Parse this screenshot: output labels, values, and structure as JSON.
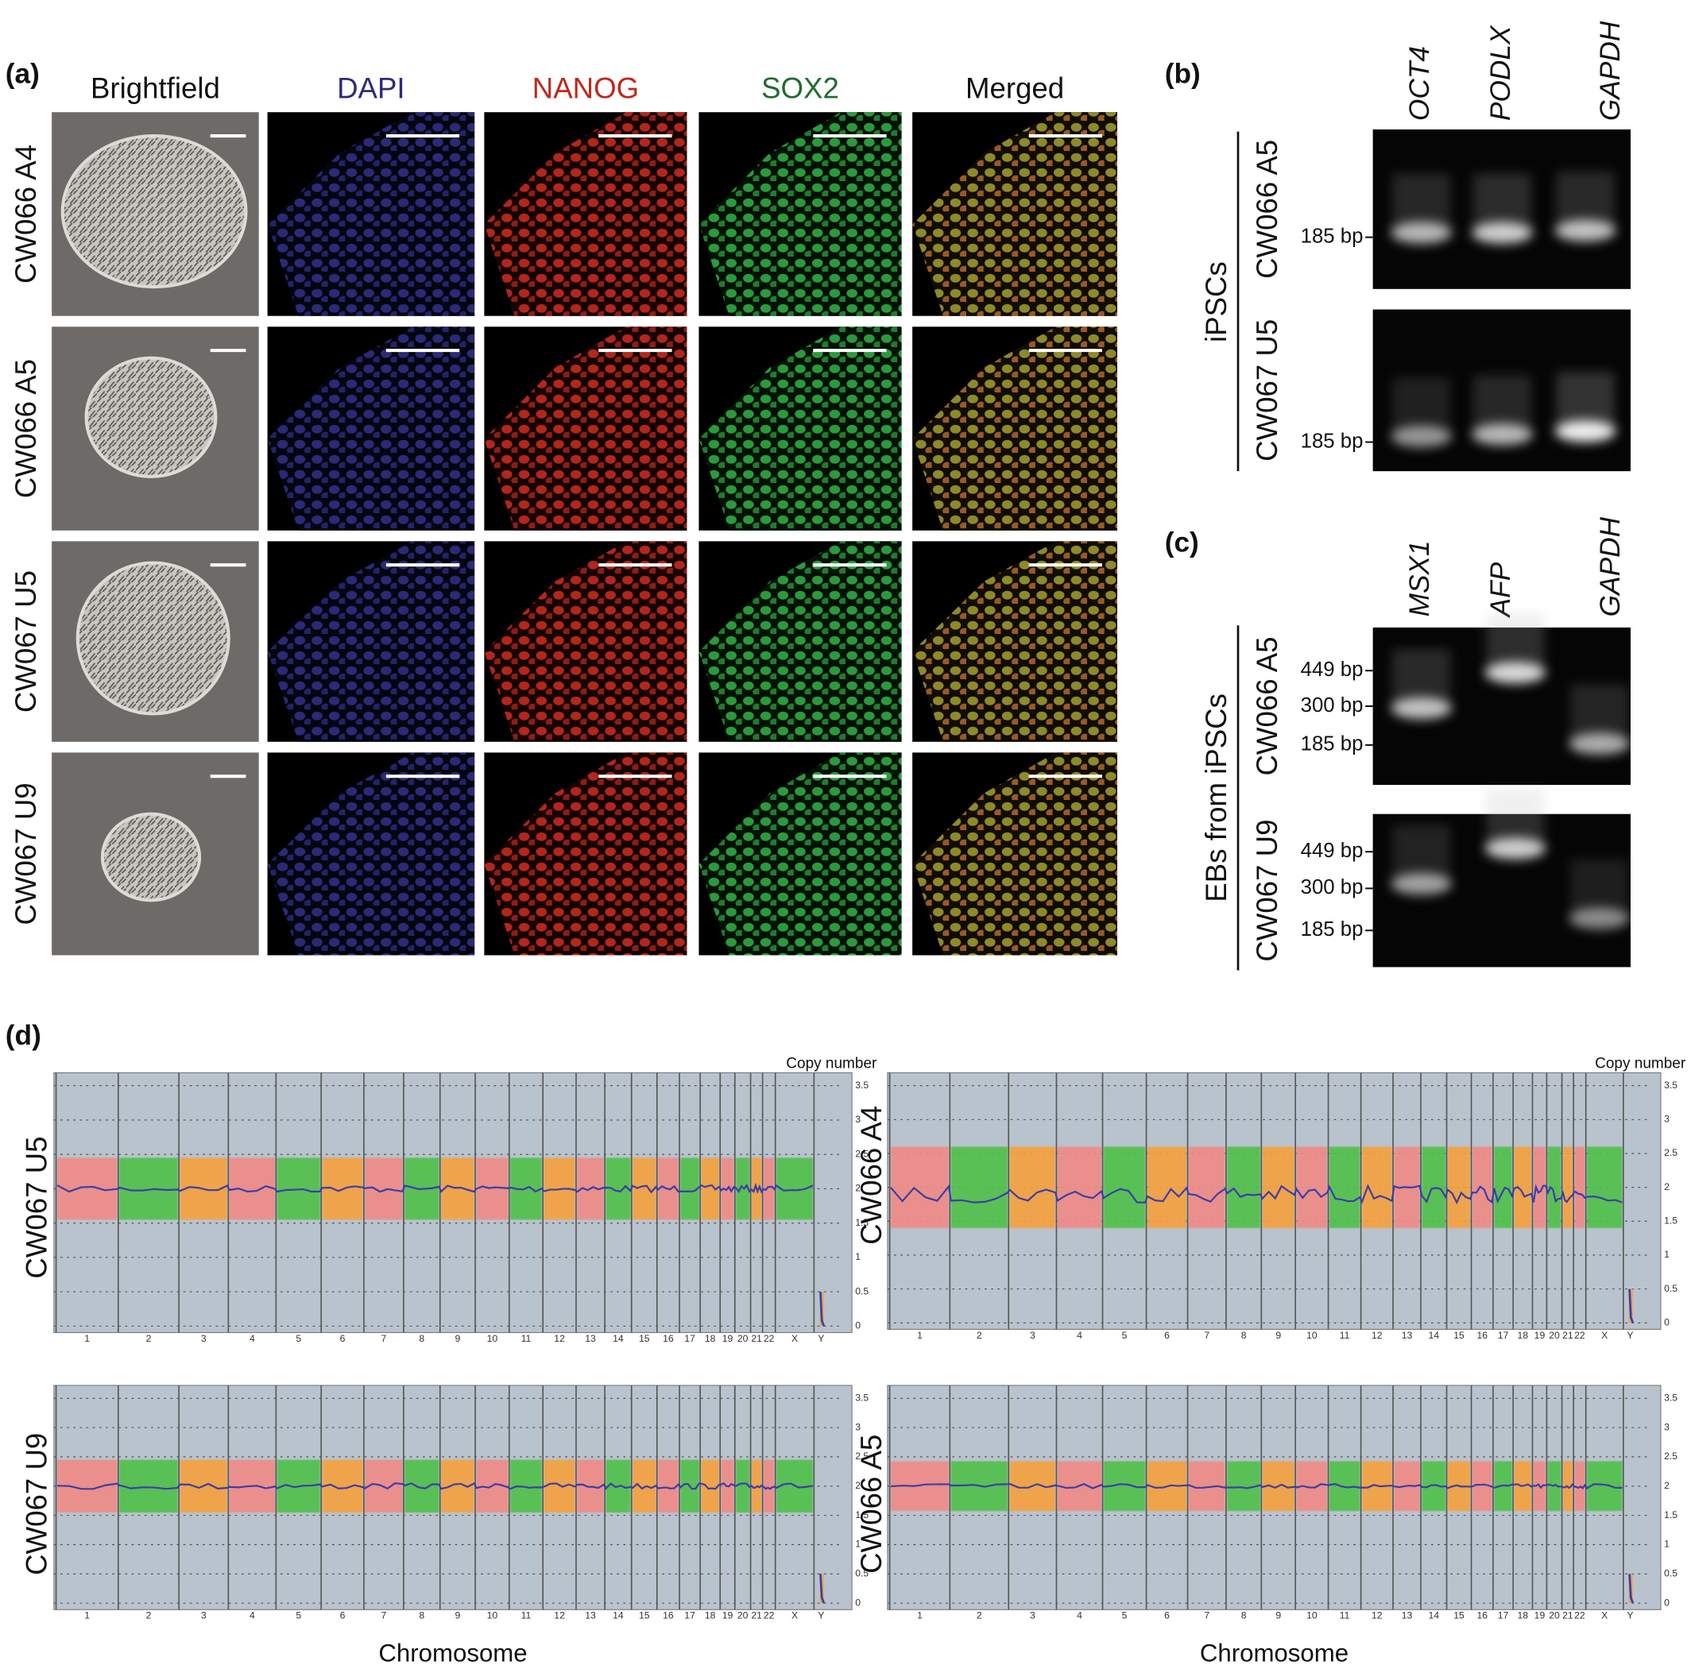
{
  "panels": {
    "a": {
      "label": "(a)",
      "columns": [
        "Brightfield",
        "DAPI",
        "NANOG",
        "SOX2",
        "Merged"
      ],
      "rows": [
        "CW066 A4",
        "CW066 A5",
        "CW067 U5",
        "CW067 U9"
      ]
    },
    "b": {
      "label": "(b)",
      "genes": [
        "OCT4",
        "PODLX",
        "GAPDH"
      ],
      "group": "iPSCs",
      "samples": [
        "CW066 A5",
        "CW067 U5"
      ],
      "marker": "185 bp"
    },
    "c": {
      "label": "(c)",
      "genes": [
        "MSX1",
        "AFP",
        "GAPDH"
      ],
      "group": "EBs from iPSCs",
      "samples": [
        "CW066 A5",
        "CW067 U9"
      ],
      "markers": [
        "449 bp",
        "300 bp",
        "185 bp"
      ]
    },
    "d": {
      "label": "(d)",
      "samples": [
        "CW067 U5",
        "CW066 A4",
        "CW067 U9",
        "CW066 A5"
      ],
      "copy_number_title": "Copy number",
      "x_label": "Chromosome",
      "copy_number_ticks": [
        "3.5",
        "3",
        "2.5",
        "2",
        "1.5",
        "1",
        "0.5",
        "0"
      ],
      "chromosomes": [
        "1",
        "2",
        "3",
        "4",
        "5",
        "6",
        "7",
        "8",
        "9",
        "10",
        "11",
        "12",
        "13",
        "14",
        "15",
        "16",
        "17",
        "18",
        "19",
        "20",
        "21",
        "22",
        "X",
        "Y"
      ]
    }
  }
}
